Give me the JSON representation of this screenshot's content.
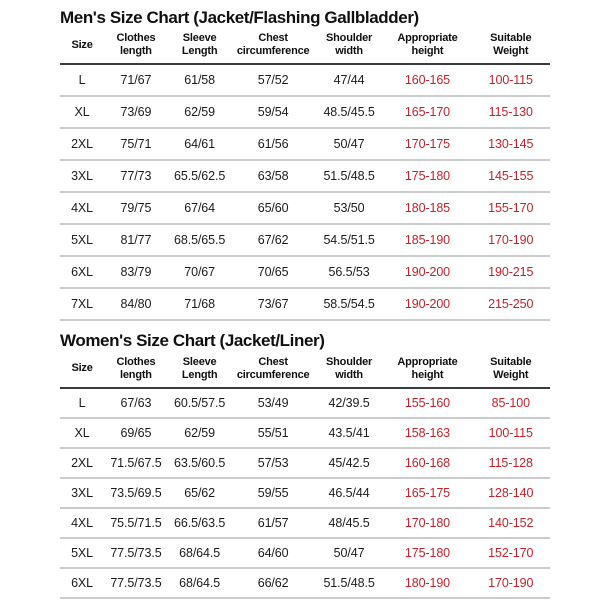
{
  "colors": {
    "background": "#ffffff",
    "text": "#1c1c1c",
    "accent_red": "#c2232b",
    "row_line": "#cbcbcb",
    "header_line": "#3b3b3b"
  },
  "chart_data": [
    {
      "type": "table",
      "title": "Men's Size Chart (Jacket/Flashing Gallbladder)",
      "columns": [
        "Size",
        "Clothes\nlength",
        "Sleeve\nLength",
        "Chest\ncircumference",
        "Shoulder\nwidth",
        "Appropriate\nheight",
        "Suitable\nWeight"
      ],
      "red_value_columns": [
        5,
        6
      ],
      "rows": [
        [
          "L",
          "71/67",
          "61/58",
          "57/52",
          "47/44",
          "160-165",
          "100-115"
        ],
        [
          "XL",
          "73/69",
          "62/59",
          "59/54",
          "48.5/45.5",
          "165-170",
          "115-130"
        ],
        [
          "2XL",
          "75/71",
          "64/61",
          "61/56",
          "50/47",
          "170-175",
          "130-145"
        ],
        [
          "3XL",
          "77/73",
          "65.5/62.5",
          "63/58",
          "51.5/48.5",
          "175-180",
          "145-155"
        ],
        [
          "4XL",
          "79/75",
          "67/64",
          "65/60",
          "53/50",
          "180-185",
          "155-170"
        ],
        [
          "5XL",
          "81/77",
          "68.5/65.5",
          "67/62",
          "54.5/51.5",
          "185-190",
          "170-190"
        ],
        [
          "6XL",
          "83/79",
          "70/67",
          "70/65",
          "56.5/53",
          "190-200",
          "190-215"
        ],
        [
          "7XL",
          "84/80",
          "71/68",
          "73/67",
          "58.5/54.5",
          "190-200",
          "215-250"
        ]
      ]
    },
    {
      "type": "table",
      "title": "Women's Size Chart (Jacket/Liner)",
      "columns": [
        "Size",
        "Clothes\nlength",
        "Sleeve\nLength",
        "Chest\ncircumference",
        "Shoulder\nwidth",
        "Appropriate\nheight",
        "Suitable\nWeight"
      ],
      "red_value_columns": [
        5,
        6
      ],
      "rows": [
        [
          "L",
          "67/63",
          "60.5/57.5",
          "53/49",
          "42/39.5",
          "155-160",
          "85-100"
        ],
        [
          "XL",
          "69/65",
          "62/59",
          "55/51",
          "43.5/41",
          "158-163",
          "100-115"
        ],
        [
          "2XL",
          "71.5/67.5",
          "63.5/60.5",
          "57/53",
          "45/42.5",
          "160-168",
          "115-128"
        ],
        [
          "3XL",
          "73.5/69.5",
          "65/62",
          "59/55",
          "46.5/44",
          "165-175",
          "128-140"
        ],
        [
          "4XL",
          "75.5/71.5",
          "66.5/63.5",
          "61/57",
          "48/45.5",
          "170-180",
          "140-152"
        ],
        [
          "5XL",
          "77.5/73.5",
          "68/64.5",
          "64/60",
          "50/47",
          "175-180",
          "152-170"
        ],
        [
          "6XL",
          "77.5/73.5",
          "68/64.5",
          "66/62",
          "51.5/48.5",
          "180-190",
          "170-190"
        ]
      ]
    }
  ]
}
